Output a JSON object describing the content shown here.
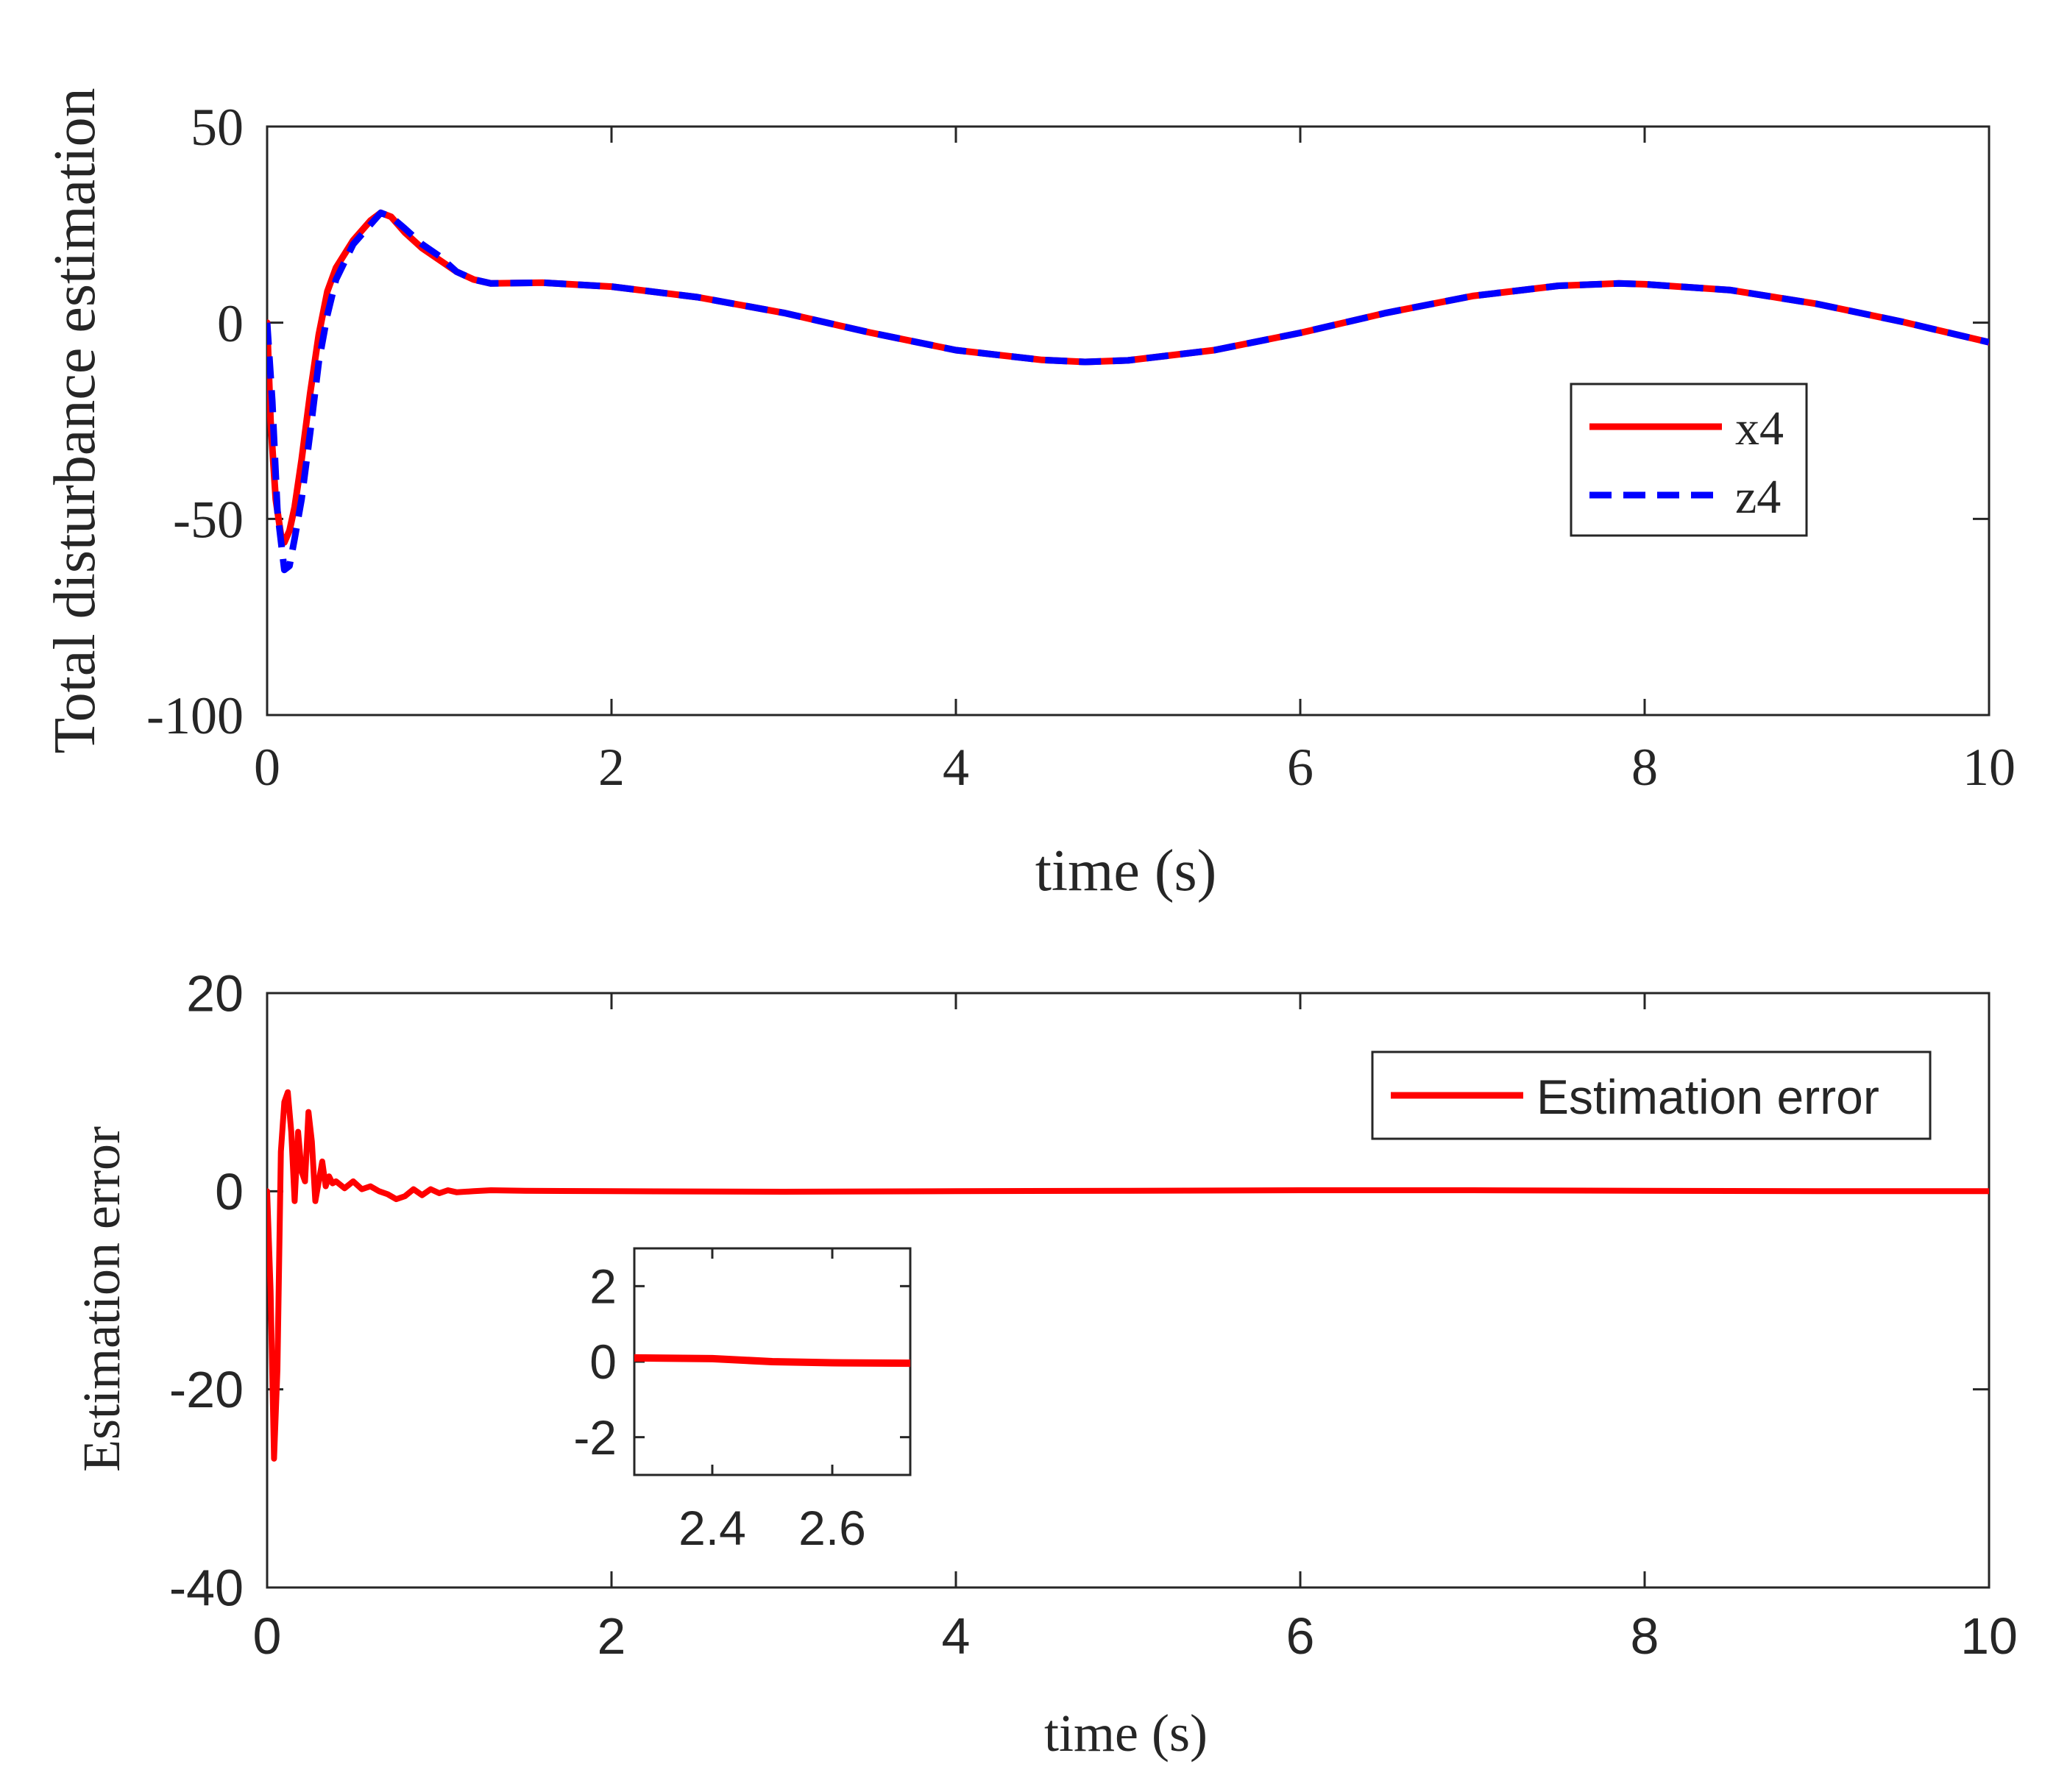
{
  "colors": {
    "x4": "#ff0000",
    "z4": "#0000ff",
    "error": "#ff0000",
    "axis": "#262626"
  },
  "chart_data": [
    {
      "type": "line",
      "id": "top",
      "xlabel": "time (s)",
      "ylabel": "Total disturbance estimation",
      "xlim": [
        0,
        10
      ],
      "ylim": [
        -100,
        50
      ],
      "xticks": [
        0,
        2,
        4,
        6,
        8,
        10
      ],
      "yticks": [
        -100,
        -50,
        0,
        50
      ],
      "legend_position": "right",
      "series": [
        {
          "name": "x4",
          "style": "solid",
          "color": "#ff0000",
          "x": [
            0,
            0.02,
            0.05,
            0.08,
            0.1,
            0.13,
            0.16,
            0.2,
            0.25,
            0.3,
            0.35,
            0.4,
            0.5,
            0.6,
            0.66,
            0.72,
            0.8,
            0.9,
            1.0,
            1.1,
            1.2,
            1.3,
            1.6,
            2.0,
            2.5,
            3.0,
            3.5,
            4.0,
            4.5,
            4.75,
            5.0,
            5.5,
            6.0,
            6.5,
            7.0,
            7.5,
            7.85,
            8.0,
            8.5,
            9.0,
            9.5,
            10.0
          ],
          "y": [
            0,
            -25,
            -45,
            -54,
            -56,
            -53,
            -47,
            -35,
            -18,
            -3,
            8,
            14,
            21,
            26,
            28,
            27,
            23,
            19,
            16,
            13,
            11,
            10,
            10.2,
            9.2,
            6.5,
            2.5,
            -2.5,
            -7.0,
            -9.5,
            -10.0,
            -9.6,
            -7.0,
            -2.6,
            2.5,
            6.8,
            9.4,
            10.0,
            9.8,
            8.3,
            4.8,
            0.2,
            -5.0
          ]
        },
        {
          "name": "z4",
          "style": "dashed",
          "color": "#0000ff",
          "x": [
            0,
            0.03,
            0.06,
            0.1,
            0.13,
            0.16,
            0.2,
            0.25,
            0.3,
            0.35,
            0.4,
            0.5,
            0.6,
            0.66,
            0.72,
            0.8,
            0.9,
            1.0,
            1.1,
            1.2,
            1.3,
            1.6,
            2.0,
            2.5,
            3.0,
            3.5,
            4.0,
            4.5,
            4.75,
            5.0,
            5.5,
            6.0,
            6.5,
            7.0,
            7.5,
            7.85,
            8.0,
            8.5,
            9.0,
            9.5,
            10.0
          ],
          "y": [
            0,
            -20,
            -48,
            -63,
            -62,
            -55,
            -45,
            -28,
            -10,
            2,
            11,
            20,
            25,
            28,
            27,
            24,
            20,
            17,
            13,
            11,
            10,
            10.2,
            9.2,
            6.5,
            2.5,
            -2.5,
            -7.0,
            -9.5,
            -10.0,
            -9.6,
            -7.0,
            -2.6,
            2.5,
            6.8,
            9.4,
            10.0,
            9.8,
            8.3,
            4.8,
            0.2,
            -5.0
          ]
        }
      ]
    },
    {
      "type": "line",
      "id": "bottom",
      "xlabel": "time (s)",
      "ylabel": "Estimation error",
      "xlim": [
        0,
        10
      ],
      "ylim": [
        -40,
        20
      ],
      "xticks": [
        0,
        2,
        4,
        6,
        8,
        10
      ],
      "yticks": [
        -40,
        -20,
        0,
        20
      ],
      "legend_position": "top-right",
      "series": [
        {
          "name": "Estimation error",
          "style": "solid",
          "color": "#ff0000",
          "x": [
            0,
            0.02,
            0.04,
            0.06,
            0.08,
            0.1,
            0.12,
            0.14,
            0.16,
            0.18,
            0.2,
            0.22,
            0.24,
            0.26,
            0.28,
            0.3,
            0.32,
            0.34,
            0.36,
            0.38,
            0.4,
            0.45,
            0.5,
            0.55,
            0.6,
            0.65,
            0.7,
            0.75,
            0.8,
            0.85,
            0.9,
            0.95,
            1.0,
            1.05,
            1.1,
            1.2,
            1.3,
            1.5,
            2.0,
            3.0,
            4.0,
            5.0,
            6.0,
            7.0,
            8.0,
            9.0,
            10.0
          ],
          "y": [
            0,
            -10,
            -27,
            -18,
            4,
            9,
            10,
            6,
            -1,
            6,
            2,
            1,
            8,
            5,
            -1,
            1,
            3,
            0.5,
            1.5,
            0.8,
            1.0,
            0.3,
            1.0,
            0.2,
            0.5,
            0.0,
            -0.3,
            -0.8,
            -0.5,
            0.2,
            -0.4,
            0.2,
            -0.2,
            0.1,
            -0.1,
            0.0,
            0.1,
            0.05,
            0.0,
            -0.05,
            0.0,
            0.05,
            0.1,
            0.1,
            0.05,
            0.0,
            0.0
          ]
        }
      ],
      "inset": {
        "xlim": [
          2.27,
          2.73
        ],
        "ylim": [
          -3,
          3
        ],
        "xticks": [
          2.4,
          2.6
        ],
        "yticks": [
          -2,
          0,
          2
        ],
        "x": [
          2.27,
          2.4,
          2.5,
          2.6,
          2.73
        ],
        "y": [
          0.1,
          0.08,
          0.0,
          -0.03,
          -0.04
        ]
      }
    }
  ]
}
